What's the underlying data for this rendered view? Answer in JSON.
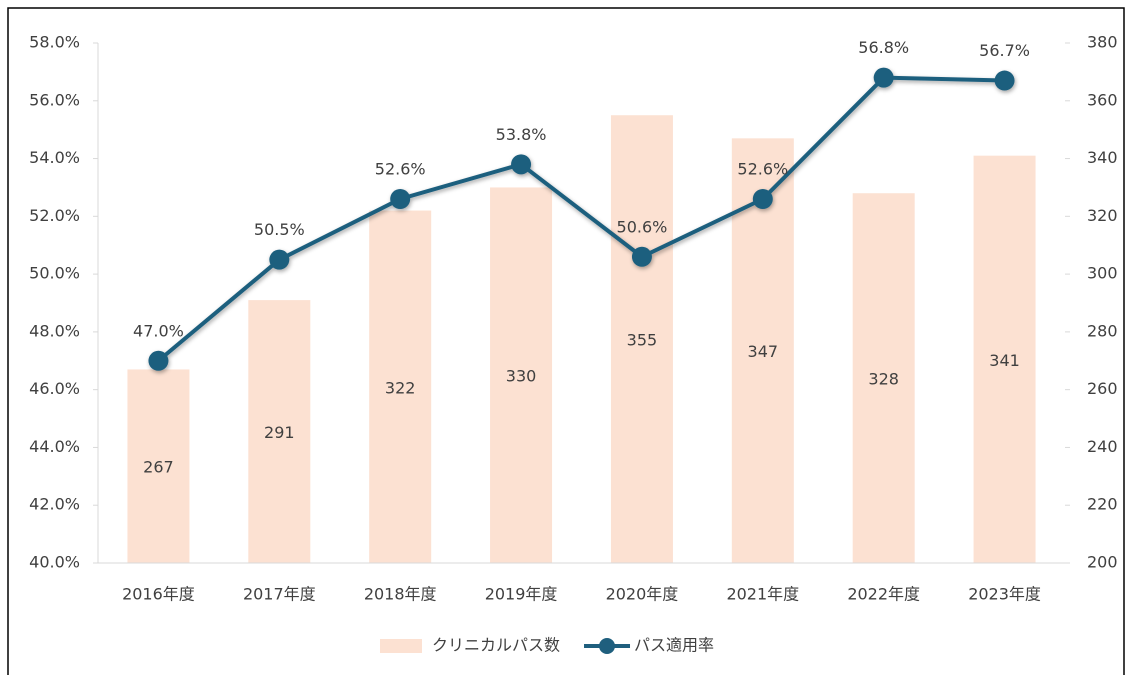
{
  "chart_data": {
    "type": "combo",
    "categories": [
      "2016年度",
      "2017年度",
      "2018年度",
      "2019年度",
      "2020年度",
      "2021年度",
      "2022年度",
      "2023年度"
    ],
    "series": [
      {
        "name": "クリニカルパス数",
        "type": "bar",
        "axis": "y2",
        "color": "#fce1d2",
        "values": [
          267,
          291,
          322,
          330,
          355,
          347,
          328,
          341
        ]
      },
      {
        "name": "パス適用率",
        "type": "line",
        "axis": "y",
        "color": "#1f5f7e",
        "values": [
          47.0,
          50.5,
          52.6,
          53.8,
          50.6,
          52.6,
          56.8,
          56.7
        ],
        "value_labels": [
          "47.0%",
          "50.5%",
          "52.6%",
          "53.8%",
          "50.6%",
          "52.6%",
          "56.8%",
          "56.7%"
        ]
      }
    ],
    "ylim": [
      40,
      58
    ],
    "yticks": [
      {
        "value": 40,
        "label": "40.0%"
      },
      {
        "value": 42,
        "label": "42.0%"
      },
      {
        "value": 44,
        "label": "44.0%"
      },
      {
        "value": 46,
        "label": "46.0%"
      },
      {
        "value": 48,
        "label": "48.0%"
      },
      {
        "value": 50,
        "label": "50.0%"
      },
      {
        "value": 52,
        "label": "52.0%"
      },
      {
        "value": 54,
        "label": "54.0%"
      },
      {
        "value": 56,
        "label": "56.0%"
      },
      {
        "value": 58,
        "label": "58.0%"
      }
    ],
    "y2lim": [
      200,
      380
    ],
    "y2ticks": [
      200,
      220,
      240,
      260,
      280,
      300,
      320,
      340,
      360,
      380
    ],
    "legend": "bottom"
  }
}
